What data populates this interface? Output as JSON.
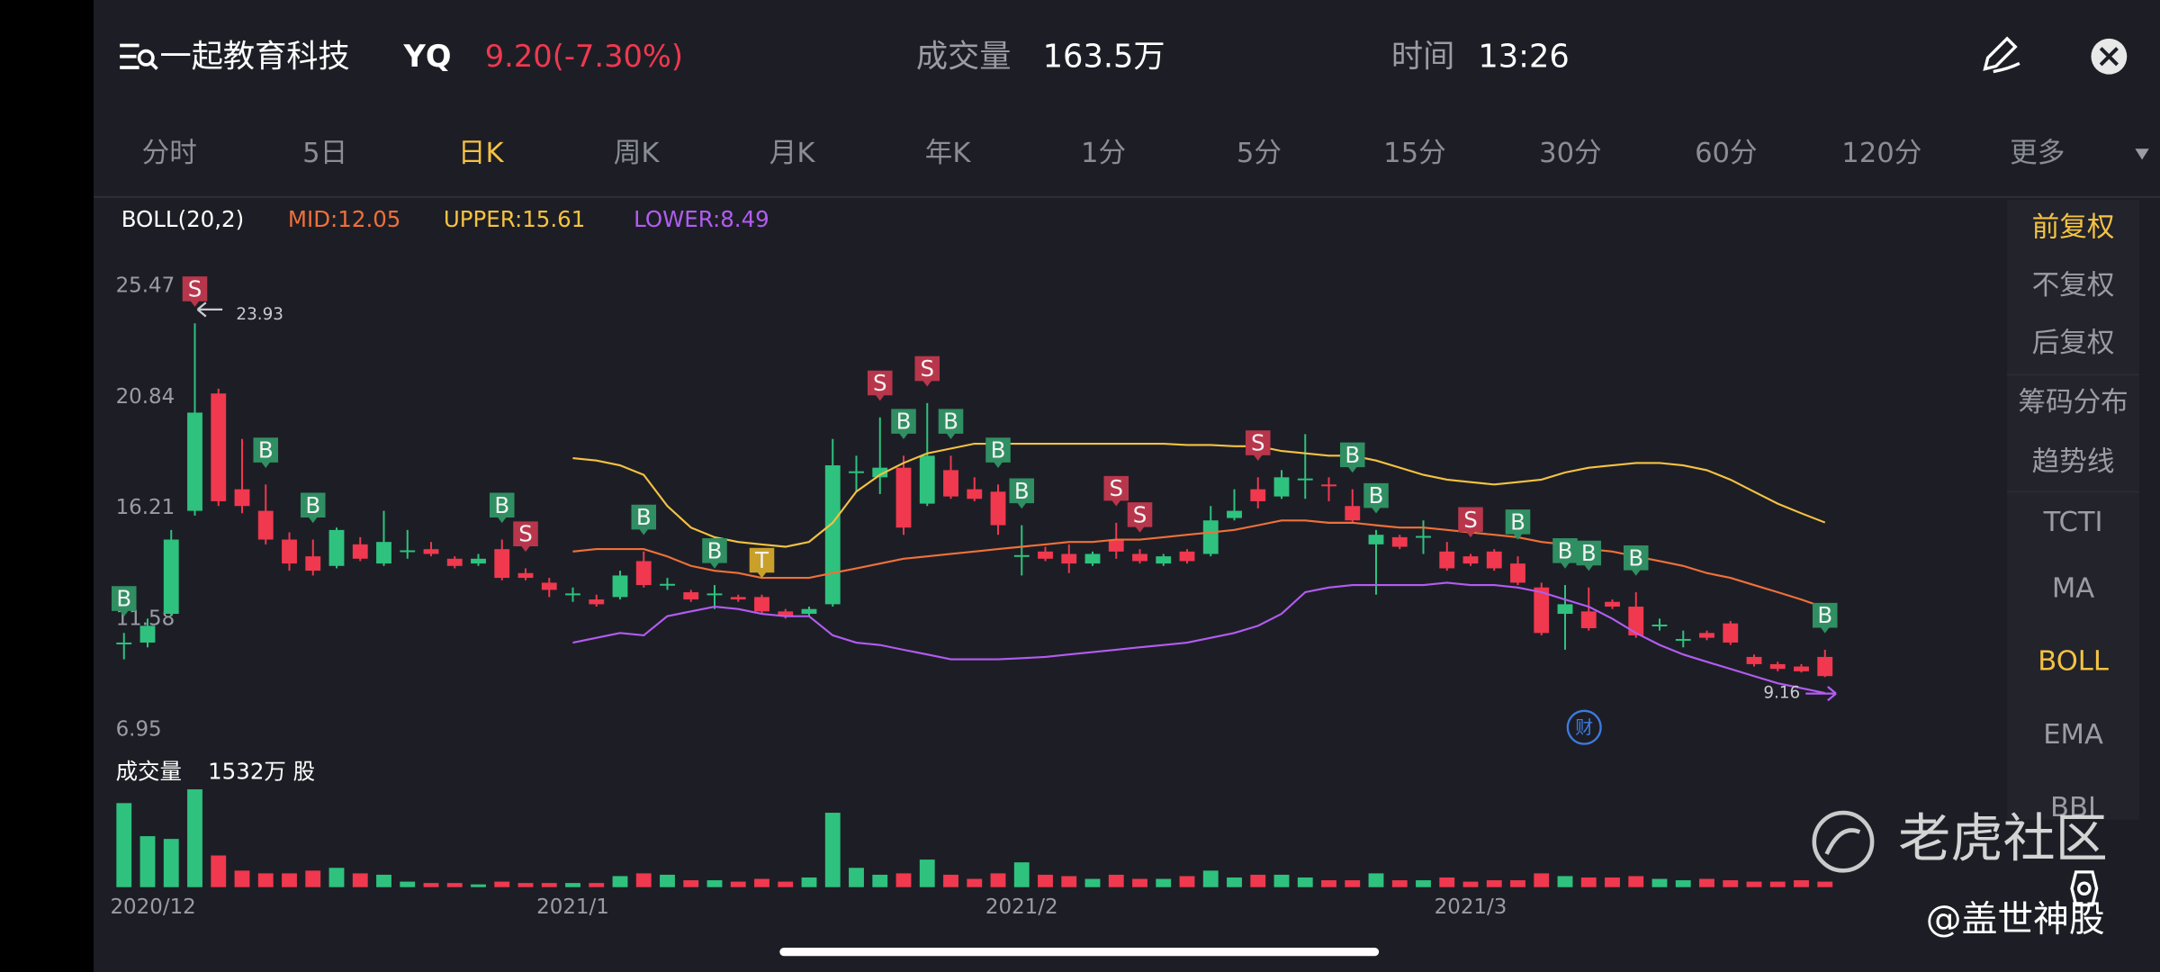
{
  "header": {
    "title": "一起教育科技",
    "ticker": "YQ",
    "price": "9.20(-7.30%)",
    "volume_label": "成交量",
    "volume": "163.5万",
    "time_label": "时间",
    "time": "13:26"
  },
  "tabs": {
    "items": [
      "分时",
      "5日",
      "日K",
      "周K",
      "月K",
      "年K",
      "1分",
      "5分",
      "15分",
      "30分",
      "60分",
      "120分",
      "更多"
    ],
    "active": 2
  },
  "side_menu": {
    "items": [
      "前复权",
      "不复权",
      "后复权",
      "筹码分布",
      "趋势线",
      "TCTI",
      "MA",
      "BOLL",
      "EMA",
      "BBI"
    ],
    "active": [
      0,
      7
    ]
  },
  "watermark": {
    "brand": "老虎社区",
    "author": "@盖世神股"
  },
  "chart_data": {
    "type": "candlestick",
    "indicator": "BOLL(20,2)",
    "categories": [
      null,
      "2020/12",
      null,
      null,
      null,
      null,
      null,
      null,
      null,
      null,
      null,
      null,
      null,
      null,
      null,
      null,
      null,
      null,
      null,
      "2021/1",
      null,
      null,
      null,
      null,
      null,
      null,
      null,
      null,
      null,
      null,
      null,
      null,
      null,
      null,
      null,
      null,
      null,
      null,
      "2021/2",
      null,
      null,
      null,
      null,
      null,
      null,
      null,
      null,
      null,
      null,
      null,
      null,
      null,
      null,
      null,
      null,
      null,
      null,
      "2021/3",
      null,
      null,
      null,
      null,
      null,
      null,
      null,
      null,
      null,
      null,
      null,
      null,
      null,
      null,
      null
    ],
    "open": [
      10.6,
      10.6,
      11.8,
      16.1,
      21.0,
      17.0,
      16.1,
      14.9,
      14.2,
      13.8,
      14.7,
      13.9,
      14.4,
      14.5,
      14.1,
      13.9,
      14.5,
      13.5,
      13.1,
      12.6,
      12.4,
      12.5,
      14.0,
      13.0,
      12.7,
      12.6,
      12.5,
      12.5,
      11.9,
      11.8,
      12.2,
      17.7,
      17.5,
      17.9,
      16.4,
      17.8,
      17.0,
      16.9,
      14.2,
      14.4,
      14.3,
      13.9,
      14.9,
      14.3,
      13.9,
      14.4,
      14.3,
      15.8,
      17.0,
      16.7,
      17.4,
      17.2,
      16.3,
      14.7,
      15.0,
      15.0,
      14.4,
      14.2,
      14.4,
      13.9,
      12.9,
      11.8,
      11.9,
      12.3,
      12.1,
      11.3,
      10.7,
      11.0,
      11.4,
      10.0,
      9.7,
      9.6,
      10.0
    ],
    "close": [
      10.6,
      11.3,
      14.9,
      20.2,
      16.5,
      16.3,
      14.9,
      13.9,
      13.6,
      15.3,
      14.1,
      14.8,
      14.45,
      14.3,
      13.8,
      14.1,
      13.3,
      13.3,
      12.8,
      12.65,
      12.2,
      13.4,
      13.0,
      13.05,
      12.4,
      12.65,
      12.4,
      11.9,
      11.7,
      12.0,
      18.0,
      17.75,
      17.9,
      15.4,
      18.4,
      16.7,
      16.6,
      15.5,
      14.25,
      14.1,
      13.9,
      14.3,
      14.4,
      14.0,
      14.2,
      14.0,
      15.7,
      16.1,
      16.5,
      17.5,
      17.45,
      17.15,
      15.7,
      15.1,
      14.6,
      15.05,
      13.7,
      13.9,
      13.7,
      13.1,
      11.0,
      12.2,
      11.2,
      12.1,
      10.9,
      11.35,
      10.75,
      10.8,
      10.6,
      9.7,
      9.5,
      9.4,
      9.2
    ],
    "high": [
      11.0,
      11.6,
      15.3,
      23.93,
      21.2,
      19.1,
      17.2,
      15.2,
      14.9,
      15.4,
      15.0,
      16.1,
      15.3,
      14.8,
      14.2,
      14.3,
      14.9,
      13.7,
      13.3,
      12.9,
      12.6,
      13.6,
      14.4,
      13.3,
      12.8,
      13.0,
      12.6,
      12.6,
      12.0,
      12.1,
      19.1,
      18.4,
      20.0,
      18.4,
      20.6,
      18.4,
      17.5,
      17.2,
      15.5,
      14.6,
      14.7,
      14.4,
      15.6,
      14.5,
      14.3,
      14.5,
      16.3,
      17.0,
      17.5,
      17.8,
      19.3,
      17.5,
      17.0,
      15.3,
      15.1,
      15.7,
      14.8,
      14.3,
      14.5,
      14.2,
      13.1,
      13.0,
      12.9,
      12.4,
      12.7,
      11.6,
      11.1,
      11.1,
      11.5,
      10.1,
      9.8,
      9.7,
      10.3
    ],
    "low": [
      9.9,
      10.4,
      11.7,
      15.9,
      16.3,
      16.0,
      14.7,
      13.6,
      13.4,
      13.7,
      14.0,
      13.8,
      14.1,
      14.2,
      13.7,
      13.8,
      13.2,
      13.2,
      12.5,
      12.3,
      12.1,
      12.4,
      12.9,
      12.8,
      12.3,
      12.0,
      12.3,
      11.8,
      11.6,
      11.7,
      12.1,
      16.9,
      16.8,
      15.1,
      16.3,
      16.6,
      16.5,
      15.1,
      13.4,
      14.0,
      13.5,
      13.8,
      14.1,
      13.9,
      13.8,
      13.9,
      14.2,
      15.7,
      16.2,
      16.6,
      16.6,
      16.5,
      15.6,
      12.6,
      14.5,
      14.3,
      13.6,
      13.8,
      13.6,
      13.0,
      10.9,
      10.3,
      11.1,
      12.0,
      10.8,
      11.1,
      10.4,
      10.7,
      10.5,
      9.6,
      9.4,
      9.35,
      9.16
    ],
    "up_color": "#2ec27e",
    "down_color": "#f0384f",
    "ylim": [
      6.37,
      26.5
    ],
    "yticks": [
      6.95,
      11.58,
      16.21,
      20.84,
      25.47
    ],
    "grid": false,
    "series": [
      {
        "name": "MID:12.05",
        "color": "#f0703a",
        "values": [
          null,
          null,
          null,
          null,
          null,
          null,
          null,
          null,
          null,
          null,
          null,
          null,
          null,
          null,
          null,
          null,
          null,
          null,
          null,
          14.4,
          14.5,
          14.5,
          14.5,
          14.2,
          13.8,
          13.6,
          13.5,
          13.3,
          13.3,
          13.3,
          13.5,
          13.7,
          13.9,
          14.1,
          14.2,
          14.3,
          14.4,
          14.5,
          14.6,
          14.7,
          14.8,
          14.8,
          14.9,
          14.9,
          15.0,
          15.1,
          15.2,
          15.3,
          15.5,
          15.7,
          15.7,
          15.6,
          15.6,
          15.5,
          15.4,
          15.4,
          15.3,
          15.2,
          15.1,
          15.0,
          14.8,
          14.7,
          14.5,
          14.4,
          14.2,
          14.0,
          13.8,
          13.5,
          13.3,
          13.0,
          12.7,
          12.4,
          12.05
        ]
      },
      {
        "name": "UPPER:15.61",
        "color": "#f5c242",
        "values": [
          null,
          null,
          null,
          null,
          null,
          null,
          null,
          null,
          null,
          null,
          null,
          null,
          null,
          null,
          null,
          null,
          null,
          null,
          null,
          18.3,
          18.2,
          18.0,
          17.6,
          16.3,
          15.4,
          15.0,
          14.8,
          14.7,
          14.6,
          14.8,
          15.6,
          16.9,
          17.6,
          18.1,
          18.5,
          18.7,
          18.9,
          18.9,
          18.9,
          18.9,
          18.9,
          18.9,
          18.9,
          18.9,
          18.9,
          18.85,
          18.85,
          18.8,
          18.8,
          18.6,
          18.5,
          18.4,
          18.4,
          18.2,
          17.9,
          17.6,
          17.4,
          17.3,
          17.2,
          17.3,
          17.4,
          17.7,
          17.9,
          18.0,
          18.1,
          18.1,
          18.0,
          17.8,
          17.4,
          16.9,
          16.4,
          16.0,
          15.61
        ]
      },
      {
        "name": "LOWER:8.49",
        "color": "#b25cf2",
        "values": [
          null,
          null,
          null,
          null,
          null,
          null,
          null,
          null,
          null,
          null,
          null,
          null,
          null,
          null,
          null,
          null,
          null,
          null,
          null,
          10.6,
          10.8,
          11.0,
          10.9,
          11.7,
          11.9,
          12.1,
          12.0,
          11.8,
          11.7,
          11.7,
          10.9,
          10.6,
          10.5,
          10.3,
          10.1,
          9.9,
          9.9,
          9.9,
          9.95,
          10.0,
          10.1,
          10.2,
          10.3,
          10.4,
          10.5,
          10.6,
          10.8,
          11.0,
          11.3,
          11.8,
          12.7,
          12.9,
          13.0,
          13.0,
          13.0,
          13.0,
          13.1,
          13.0,
          13.0,
          12.9,
          12.7,
          12.4,
          12.1,
          11.6,
          11.0,
          10.5,
          10.1,
          9.8,
          9.5,
          9.2,
          8.9,
          8.7,
          8.49
        ]
      }
    ],
    "volume": {
      "label": "成交量",
      "value_text": "1532万 股",
      "ylim": [
        0,
        3600
      ],
      "values": [
        3050,
        1850,
        1750,
        3550,
        1150,
        600,
        500,
        500,
        600,
        700,
        500,
        450,
        200,
        150,
        150,
        100,
        200,
        150,
        150,
        150,
        150,
        400,
        500,
        450,
        250,
        250,
        200,
        300,
        200,
        350,
        2700,
        700,
        450,
        500,
        1000,
        450,
        300,
        500,
        900,
        450,
        400,
        300,
        450,
        300,
        300,
        400,
        600,
        350,
        450,
        450,
        350,
        250,
        250,
        500,
        250,
        250,
        350,
        200,
        250,
        250,
        500,
        400,
        350,
        350,
        400,
        300,
        250,
        300,
        250,
        200,
        200,
        250,
        200
      ]
    },
    "signal_colors": {
      "B": "#2f8f62",
      "S": "#b8364b",
      "T": "#c9a02a"
    },
    "signals": [
      {
        "label": "B",
        "index": 0
      },
      {
        "label": "S",
        "index": 3
      },
      {
        "label": "B",
        "index": 6
      },
      {
        "label": "B",
        "index": 8
      },
      {
        "label": "B",
        "index": 16
      },
      {
        "label": "S",
        "index": 17
      },
      {
        "label": "B",
        "index": 22
      },
      {
        "label": "B",
        "index": 25
      },
      {
        "label": "T",
        "index": 27
      },
      {
        "label": "S",
        "index": 32
      },
      {
        "label": "B",
        "index": 33
      },
      {
        "label": "S",
        "index": 34
      },
      {
        "label": "B",
        "index": 35
      },
      {
        "label": "B",
        "index": 37
      },
      {
        "label": "B",
        "index": 38
      },
      {
        "label": "S",
        "index": 42
      },
      {
        "label": "S",
        "index": 43
      },
      {
        "label": "S",
        "index": 48
      },
      {
        "label": "B",
        "index": 52
      },
      {
        "label": "B",
        "index": 53
      },
      {
        "label": "S",
        "index": 57
      },
      {
        "label": "B",
        "index": 59
      },
      {
        "label": "B",
        "index": 61
      },
      {
        "label": "B",
        "index": 62
      },
      {
        "label": "B",
        "index": 64
      },
      {
        "label": "B",
        "index": 72
      }
    ],
    "max_mark": {
      "index": 3,
      "value": 23.93
    },
    "min_mark": {
      "index": 72,
      "value": 9.16
    },
    "event_icon": "财"
  }
}
